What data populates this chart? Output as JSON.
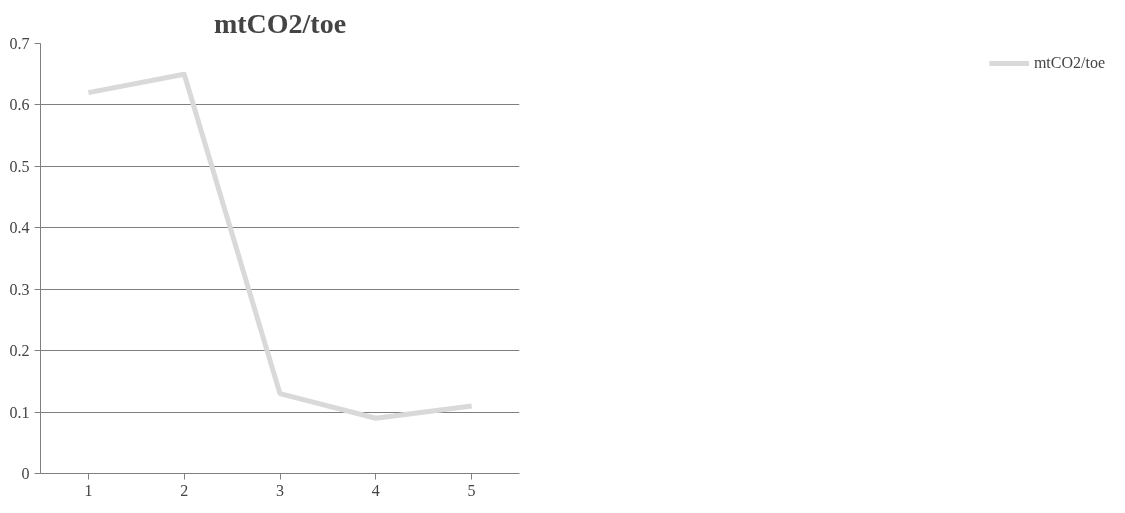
{
  "chart_data": {
    "type": "line",
    "title": "mtCO2/toe",
    "categories": [
      "1",
      "2",
      "3",
      "4",
      "5"
    ],
    "series": [
      {
        "name": "mtCO2/toe",
        "color": "#d9d9d9",
        "values": [
          0.62,
          0.65,
          0.13,
          0.09,
          0.11
        ]
      }
    ],
    "ylim": [
      0,
      0.7
    ],
    "yticks": [
      0,
      0.1,
      0.2,
      0.3,
      0.4,
      0.5,
      0.6,
      0.7
    ],
    "grid": "y",
    "legend": "right",
    "marker": "none",
    "line_style": "solid"
  }
}
